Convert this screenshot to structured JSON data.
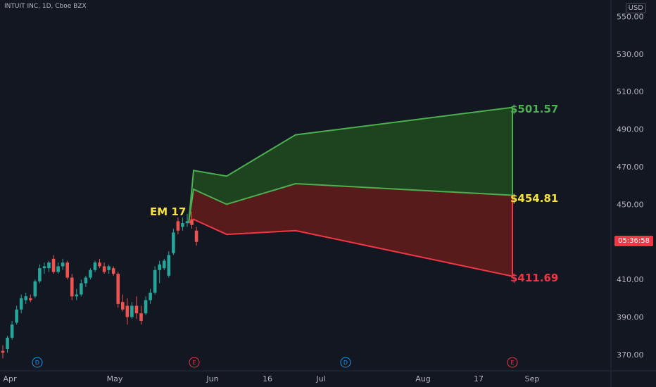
{
  "header": {
    "symbol": "INTUIT INC, 1D, Cboe BZX",
    "currency": "USD"
  },
  "current_price_label": "05:36:58",
  "annotations": {
    "em_label": "EM 17",
    "upper": "$501.57",
    "mid": "$454.81",
    "lower": "$411.69"
  },
  "colors": {
    "up": "#26a69a",
    "down": "#ef5350",
    "upper_band": "#4caf50",
    "lower_band": "#f23645",
    "upper_fill": "#1e4620",
    "lower_fill": "#5c1b1b"
  },
  "chart_data": {
    "type": "candlestick",
    "y_ticks": [
      "550.00",
      "530.00",
      "510.00",
      "490.00",
      "470.00",
      "450.00",
      "410.00",
      "390.00",
      "370.00"
    ],
    "ylim": [
      364,
      555
    ],
    "x_labels": [
      "Apr",
      "May",
      "Jun",
      "16",
      "Jul",
      "Aug",
      "17",
      "Sep"
    ],
    "event_markers": [
      "D",
      "E",
      "D",
      "E"
    ],
    "candles": [
      {
        "o": 372,
        "h": 375,
        "l": 368,
        "c": 371
      },
      {
        "o": 373,
        "h": 380,
        "l": 371,
        "c": 379
      },
      {
        "o": 379,
        "h": 388,
        "l": 378,
        "c": 386
      },
      {
        "o": 387,
        "h": 396,
        "l": 386,
        "c": 394
      },
      {
        "o": 394,
        "h": 402,
        "l": 392,
        "c": 400
      },
      {
        "o": 399,
        "h": 403,
        "l": 397,
        "c": 401
      },
      {
        "o": 400,
        "h": 402,
        "l": 398,
        "c": 399
      },
      {
        "o": 401,
        "h": 410,
        "l": 400,
        "c": 409
      },
      {
        "o": 409,
        "h": 418,
        "l": 408,
        "c": 416
      },
      {
        "o": 416,
        "h": 419,
        "l": 413,
        "c": 417
      },
      {
        "o": 416,
        "h": 420,
        "l": 414,
        "c": 419
      },
      {
        "o": 421,
        "h": 423,
        "l": 413,
        "c": 414
      },
      {
        "o": 414,
        "h": 419,
        "l": 413,
        "c": 417
      },
      {
        "o": 417,
        "h": 421,
        "l": 415,
        "c": 419
      },
      {
        "o": 419,
        "h": 420,
        "l": 410,
        "c": 411
      },
      {
        "o": 411,
        "h": 413,
        "l": 399,
        "c": 401
      },
      {
        "o": 401,
        "h": 405,
        "l": 399,
        "c": 402
      },
      {
        "o": 402,
        "h": 410,
        "l": 401,
        "c": 408
      },
      {
        "o": 408,
        "h": 412,
        "l": 406,
        "c": 411
      },
      {
        "o": 411,
        "h": 416,
        "l": 410,
        "c": 415
      },
      {
        "o": 415,
        "h": 420,
        "l": 414,
        "c": 419
      },
      {
        "o": 419,
        "h": 421,
        "l": 416,
        "c": 417
      },
      {
        "o": 417,
        "h": 419,
        "l": 413,
        "c": 414
      },
      {
        "o": 415,
        "h": 418,
        "l": 413,
        "c": 417
      },
      {
        "o": 416,
        "h": 417,
        "l": 412,
        "c": 413
      },
      {
        "o": 413,
        "h": 414,
        "l": 395,
        "c": 397
      },
      {
        "o": 398,
        "h": 402,
        "l": 393,
        "c": 394
      },
      {
        "o": 396,
        "h": 400,
        "l": 386,
        "c": 390
      },
      {
        "o": 390,
        "h": 398,
        "l": 389,
        "c": 396
      },
      {
        "o": 396,
        "h": 401,
        "l": 389,
        "c": 392
      },
      {
        "o": 392,
        "h": 396,
        "l": 386,
        "c": 388
      },
      {
        "o": 392,
        "h": 401,
        "l": 391,
        "c": 399
      },
      {
        "o": 399,
        "h": 405,
        "l": 397,
        "c": 403
      },
      {
        "o": 403,
        "h": 417,
        "l": 402,
        "c": 415
      },
      {
        "o": 415,
        "h": 420,
        "l": 408,
        "c": 418
      },
      {
        "o": 416,
        "h": 421,
        "l": 415,
        "c": 420
      },
      {
        "o": 412,
        "h": 425,
        "l": 411,
        "c": 423
      },
      {
        "o": 424,
        "h": 437,
        "l": 423,
        "c": 435
      },
      {
        "o": 441,
        "h": 443,
        "l": 434,
        "c": 436
      },
      {
        "o": 438,
        "h": 443,
        "l": 436,
        "c": 440
      },
      {
        "o": 440,
        "h": 445,
        "l": 438,
        "c": 441
      },
      {
        "o": 442,
        "h": 446,
        "l": 437,
        "c": 439
      },
      {
        "o": 436,
        "h": 438,
        "l": 428,
        "c": 430
      }
    ],
    "bands": {
      "upper": [
        {
          "label": "EM 17",
          "y": 468
        },
        {
          "y": 465
        },
        {
          "y": 487
        },
        {
          "label": "$501.57",
          "y": 501.57
        }
      ],
      "mid": [
        {
          "y": 458
        },
        {
          "y": 450
        },
        {
          "y": 461
        },
        {
          "label": "$454.81",
          "y": 454.81
        }
      ],
      "lower": [
        {
          "y": 442
        },
        {
          "y": 434
        },
        {
          "y": 436
        },
        {
          "label": "$411.69",
          "y": 411.69
        }
      ]
    }
  }
}
